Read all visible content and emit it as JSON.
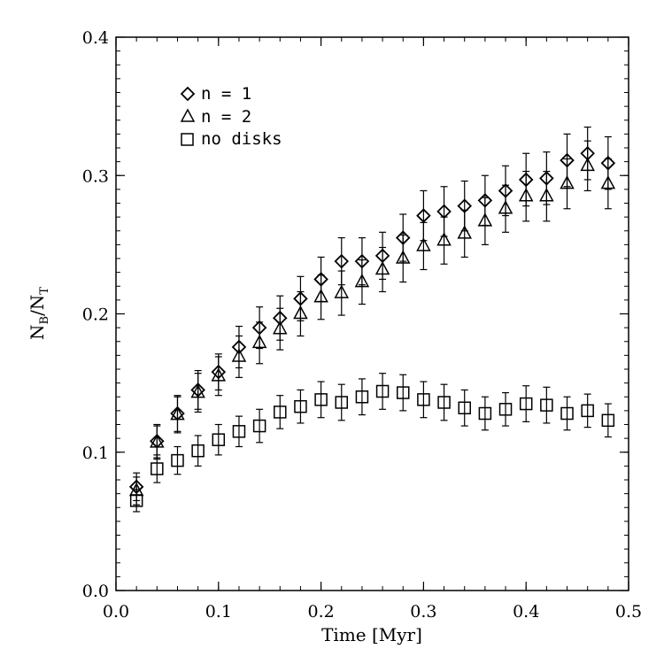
{
  "chart_data": {
    "type": "scatter",
    "xlabel": "Time [Myr]",
    "ylabel": "N_B/N_T",
    "ylabel_parts": {
      "n1": "N",
      "s1": "B",
      "slash": "/",
      "n2": "N",
      "s2": "T"
    },
    "xlim": [
      0.0,
      0.5
    ],
    "ylim": [
      0.0,
      0.4
    ],
    "x_ticks": [
      {
        "value": 0.0,
        "label": "0.0"
      },
      {
        "value": 0.1,
        "label": "0.1"
      },
      {
        "value": 0.2,
        "label": "0.2"
      },
      {
        "value": 0.3,
        "label": "0.3"
      },
      {
        "value": 0.4,
        "label": "0.4"
      },
      {
        "value": 0.5,
        "label": "0.5"
      }
    ],
    "y_ticks": [
      {
        "value": 0.0,
        "label": "0.0"
      },
      {
        "value": 0.1,
        "label": "0.1"
      },
      {
        "value": 0.2,
        "label": "0.2"
      },
      {
        "value": 0.3,
        "label": "0.3"
      },
      {
        "value": 0.4,
        "label": "0.4"
      }
    ],
    "x_minor_step": 0.02,
    "y_minor_step": 0.01,
    "legend": {
      "placement": "top-left",
      "entries": [
        {
          "marker": "diamond",
          "label": "n = 1"
        },
        {
          "marker": "triangle",
          "label": "n = 2"
        },
        {
          "marker": "square",
          "label": "no disks"
        }
      ]
    },
    "series": [
      {
        "name": "n = 1",
        "marker": "diamond",
        "x": [
          0.02,
          0.04,
          0.06,
          0.08,
          0.1,
          0.12,
          0.14,
          0.16,
          0.18,
          0.2,
          0.22,
          0.24,
          0.26,
          0.28,
          0.3,
          0.32,
          0.34,
          0.36,
          0.38,
          0.4,
          0.42,
          0.44,
          0.46,
          0.48
        ],
        "y": [
          0.075,
          0.108,
          0.128,
          0.145,
          0.158,
          0.176,
          0.19,
          0.197,
          0.211,
          0.225,
          0.238,
          0.238,
          0.242,
          0.255,
          0.271,
          0.274,
          0.278,
          0.282,
          0.289,
          0.297,
          0.298,
          0.311,
          0.316,
          0.309
        ],
        "err": [
          0.01,
          0.012,
          0.013,
          0.014,
          0.013,
          0.015,
          0.015,
          0.016,
          0.016,
          0.016,
          0.017,
          0.017,
          0.017,
          0.017,
          0.018,
          0.018,
          0.018,
          0.018,
          0.018,
          0.019,
          0.019,
          0.019,
          0.019,
          0.019
        ]
      },
      {
        "name": "n = 2",
        "marker": "triangle",
        "x": [
          0.02,
          0.04,
          0.06,
          0.08,
          0.1,
          0.12,
          0.14,
          0.16,
          0.18,
          0.2,
          0.22,
          0.24,
          0.26,
          0.28,
          0.3,
          0.32,
          0.34,
          0.36,
          0.38,
          0.4,
          0.42,
          0.44,
          0.46,
          0.48
        ],
        "y": [
          0.072,
          0.107,
          0.127,
          0.143,
          0.155,
          0.169,
          0.179,
          0.189,
          0.2,
          0.212,
          0.215,
          0.223,
          0.232,
          0.24,
          0.249,
          0.253,
          0.258,
          0.267,
          0.276,
          0.285,
          0.285,
          0.294,
          0.307,
          0.294
        ],
        "err": [
          0.01,
          0.012,
          0.013,
          0.014,
          0.014,
          0.015,
          0.015,
          0.015,
          0.016,
          0.016,
          0.016,
          0.016,
          0.016,
          0.017,
          0.017,
          0.017,
          0.017,
          0.017,
          0.017,
          0.018,
          0.018,
          0.018,
          0.018,
          0.018
        ]
      },
      {
        "name": "no disks",
        "marker": "square",
        "x": [
          0.02,
          0.04,
          0.06,
          0.08,
          0.1,
          0.12,
          0.14,
          0.16,
          0.18,
          0.2,
          0.22,
          0.24,
          0.26,
          0.28,
          0.3,
          0.32,
          0.34,
          0.36,
          0.38,
          0.4,
          0.42,
          0.44,
          0.46,
          0.48
        ],
        "y": [
          0.065,
          0.088,
          0.094,
          0.101,
          0.109,
          0.115,
          0.119,
          0.129,
          0.133,
          0.138,
          0.136,
          0.14,
          0.144,
          0.143,
          0.138,
          0.136,
          0.132,
          0.128,
          0.131,
          0.135,
          0.134,
          0.128,
          0.13,
          0.123
        ],
        "err": [
          0.008,
          0.01,
          0.01,
          0.011,
          0.011,
          0.011,
          0.012,
          0.012,
          0.012,
          0.013,
          0.013,
          0.013,
          0.013,
          0.013,
          0.013,
          0.013,
          0.013,
          0.012,
          0.012,
          0.013,
          0.013,
          0.012,
          0.012,
          0.012
        ]
      }
    ]
  }
}
